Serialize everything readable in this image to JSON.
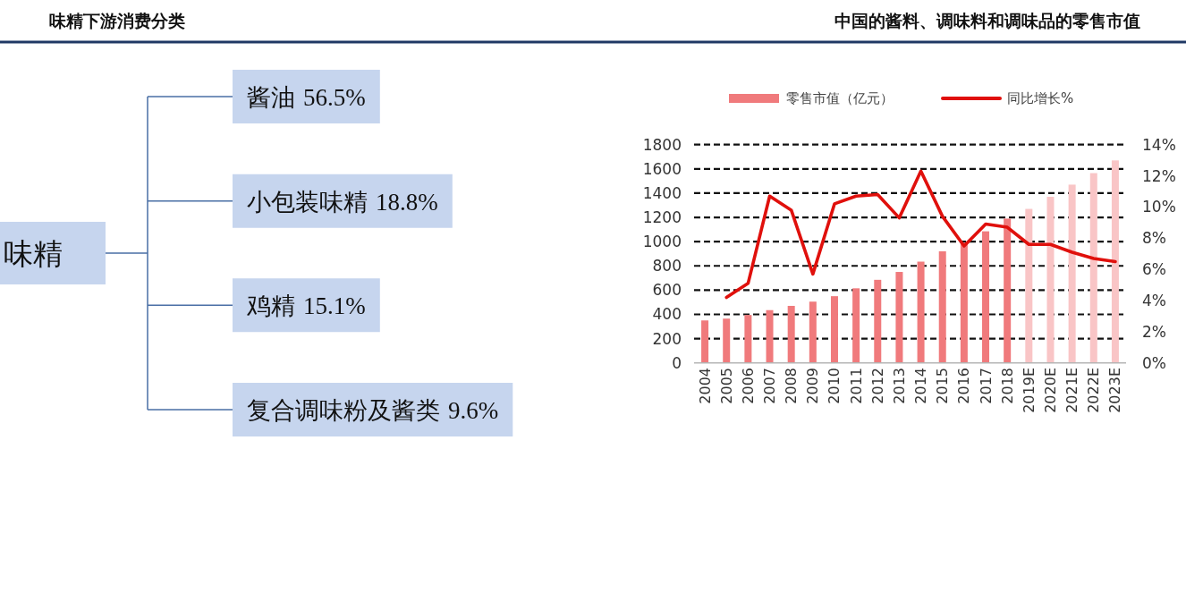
{
  "chart_data": [
    {
      "type": "other",
      "title": "味精下游消费分类",
      "categories": [
        "酱油",
        "小包装味精",
        "鸡精",
        "复合调味粉及酱类"
      ],
      "values": [
        56.5,
        18.8,
        15.1,
        9.6
      ],
      "value_labels": [
        "56.5%",
        "18.8%",
        "15.1%",
        "9.6%"
      ],
      "color": "#c6d5ee",
      "annotations": [
        "味精"
      ]
    },
    {
      "type": "bar",
      "title": "中国的酱料、调味料和调味品的零售市值",
      "categories": [
        "2004",
        "2005",
        "2006",
        "2007",
        "2008",
        "2009",
        "2010",
        "2011",
        "2012",
        "2013",
        "2014",
        "2015",
        "2016",
        "2017",
        "2018",
        "2019E",
        "2020E",
        "2021E",
        "2022E",
        "2023E"
      ],
      "series": [
        {
          "name": "零售市值（亿元）",
          "type": "bar",
          "color": "#f07a7c",
          "colors": [
            "#f07a7c",
            "#f07a7c",
            "#f07a7c",
            "#f07a7c",
            "#f07a7c",
            "#f07a7c",
            "#f07a7c",
            "#f07a7c",
            "#f07a7c",
            "#f07a7c",
            "#f07a7c",
            "#f07a7c",
            "#f07a7c",
            "#f07a7c",
            "#f07a7c",
            "#f9c5c6",
            "#f9c5c6",
            "#f9c5c6",
            "#f9c5c6",
            "#f9c5c6"
          ],
          "values": [
            350,
            365,
            395,
            435,
            470,
            505,
            550,
            615,
            685,
            750,
            835,
            920,
            990,
            1085,
            1190,
            1270,
            1370,
            1470,
            1565,
            1670
          ]
        },
        {
          "name": "同比增长%",
          "type": "line",
          "axis": "y2",
          "color": "#e0100c",
          "values": [
            null,
            4.2,
            5.1,
            10.7,
            9.8,
            5.7,
            10.2,
            10.7,
            10.8,
            9.3,
            12.3,
            9.4,
            7.5,
            8.9,
            8.7,
            7.6,
            7.6,
            7.1,
            6.7,
            6.5
          ]
        }
      ],
      "ylim": [
        0,
        1800
      ],
      "yticks": [
        0,
        200,
        400,
        600,
        800,
        1000,
        1200,
        1400,
        1600,
        1800
      ],
      "y2lim": [
        0,
        14
      ],
      "y2ticks": [
        {
          "value": 0,
          "label": "0%"
        },
        {
          "value": 2,
          "label": "2%"
        },
        {
          "value": 4,
          "label": "4%"
        },
        {
          "value": 6,
          "label": "6%"
        },
        {
          "value": 8,
          "label": "8%"
        },
        {
          "value": 10,
          "label": "10%"
        },
        {
          "value": 12,
          "label": "12%"
        },
        {
          "value": 14,
          "label": "14%"
        }
      ],
      "grid": "y",
      "legend": "top"
    }
  ]
}
